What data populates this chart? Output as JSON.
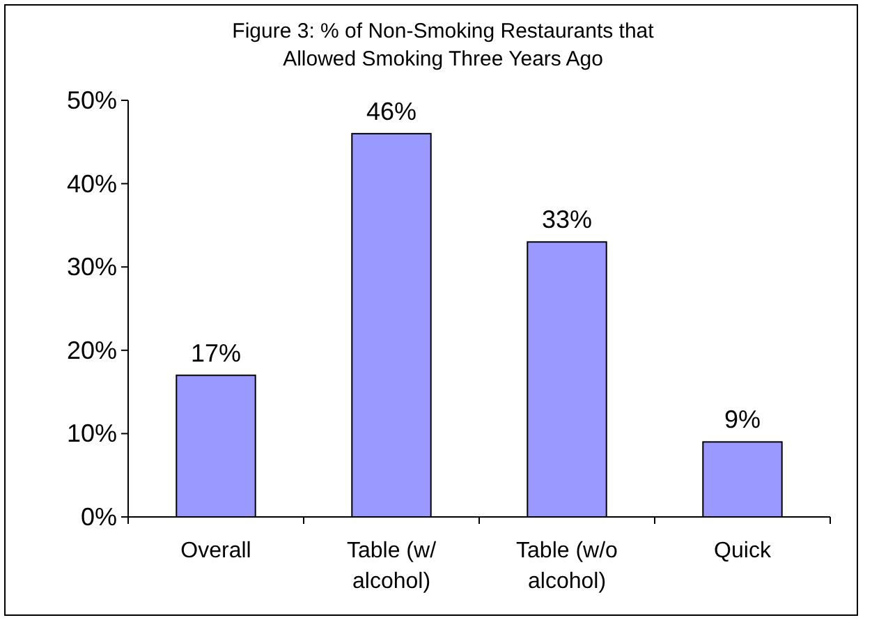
{
  "chart_data": {
    "type": "bar",
    "title": "Figure 3: % of Non-Smoking Restaurants that Allowed Smoking Three Years Ago",
    "categories": [
      "Overall",
      "Table (w/ alcohol)",
      "Table (w/o alcohol)",
      "Quick"
    ],
    "values": [
      17,
      46,
      33,
      9
    ],
    "value_labels": [
      "17%",
      "46%",
      "33%",
      "9%"
    ],
    "color": "#9999ff",
    "ylim": [
      0,
      50
    ],
    "yticks": [
      {
        "value": 0,
        "label": "0%"
      },
      {
        "value": 10,
        "label": "10%"
      },
      {
        "value": 20,
        "label": "20%"
      },
      {
        "value": 30,
        "label": "30%"
      },
      {
        "value": 40,
        "label": "40%"
      },
      {
        "value": 50,
        "label": "50%"
      }
    ],
    "grid": false
  }
}
